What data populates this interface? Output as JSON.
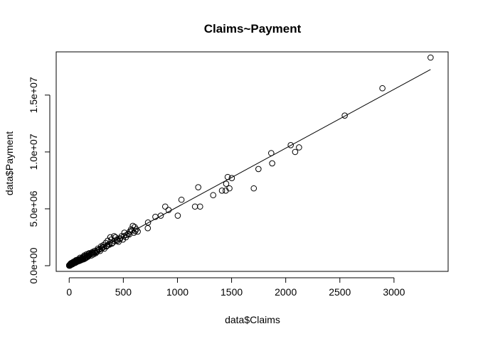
{
  "chart_data": {
    "type": "scatter",
    "title": "Claims~Payment",
    "xlabel": "data$Claims",
    "ylabel": "data$Payment",
    "xlim": [
      -120,
      3500
    ],
    "ylim": [
      -500000,
      18800000
    ],
    "xticks": [
      0,
      500,
      1000,
      1500,
      2000,
      2500,
      3000
    ],
    "xtick_labels": [
      "0",
      "500",
      "1000",
      "1500",
      "2000",
      "2500",
      "3000"
    ],
    "yticks": [
      0,
      5000000,
      10000000,
      15000000
    ],
    "ytick_labels": [
      "0.0e+00",
      "5.0e+06",
      "1.0e+07",
      "1.5e+07"
    ],
    "grid": false,
    "legend": "none",
    "point_style": "open circle",
    "fit_line": {
      "x": [
        0,
        3338
      ],
      "y": [
        0,
        17250000
      ]
    },
    "points": [
      [
        3338,
        18300000
      ],
      [
        2893,
        15600000
      ],
      [
        2545,
        13200000
      ],
      [
        2123,
        10400000
      ],
      [
        2087,
        10000000
      ],
      [
        2046,
        10600000
      ],
      [
        1875,
        9000000
      ],
      [
        1866,
        9900000
      ],
      [
        1748,
        8500000
      ],
      [
        1705,
        6800000
      ],
      [
        1502,
        7700000
      ],
      [
        1464,
        7800000
      ],
      [
        1480,
        6800000
      ],
      [
        1450,
        7200000
      ],
      [
        1446,
        6600000
      ],
      [
        1411,
        6600000
      ],
      [
        1330,
        6200000
      ],
      [
        1209,
        5200000
      ],
      [
        1192,
        6900000
      ],
      [
        1162,
        5200000
      ],
      [
        1037,
        5800000
      ],
      [
        1003,
        4400000
      ],
      [
        918,
        4900000
      ],
      [
        887,
        5200000
      ],
      [
        846,
        4400000
      ],
      [
        796,
        4300000
      ],
      [
        728,
        3800000
      ],
      [
        726,
        3300000
      ],
      [
        633,
        3000000
      ],
      [
        620,
        3200000
      ],
      [
        605,
        3400000
      ],
      [
        598,
        2900000
      ],
      [
        588,
        3500000
      ],
      [
        572,
        3200000
      ],
      [
        560,
        3000000
      ],
      [
        545,
        2800000
      ],
      [
        524,
        2500000
      ],
      [
        510,
        2900000
      ],
      [
        496,
        2300000
      ],
      [
        484,
        2600000
      ],
      [
        468,
        2400000
      ],
      [
        456,
        2100000
      ],
      [
        440,
        2300000
      ],
      [
        428,
        2500000
      ],
      [
        415,
        2600000
      ],
      [
        400,
        2000000
      ],
      [
        390,
        2300000
      ],
      [
        380,
        2500000
      ],
      [
        368,
        1900000
      ],
      [
        356,
        2200000
      ],
      [
        345,
        1700000
      ],
      [
        338,
        2000000
      ],
      [
        325,
        1500000
      ],
      [
        315,
        1800000
      ],
      [
        305,
        1600000
      ],
      [
        295,
        1700000
      ],
      [
        285,
        1300000
      ],
      [
        275,
        1400000
      ],
      [
        265,
        1500000
      ],
      [
        255,
        1200000
      ],
      [
        245,
        1100000
      ],
      [
        235,
        1300000
      ],
      [
        225,
        1000000
      ],
      [
        215,
        1200000
      ],
      [
        205,
        900000
      ],
      [
        195,
        1000000
      ],
      [
        185,
        1100000
      ],
      [
        175,
        800000
      ],
      [
        165,
        900000
      ],
      [
        158,
        700000
      ],
      [
        150,
        850000
      ],
      [
        142,
        600000
      ],
      [
        135,
        750000
      ],
      [
        128,
        550000
      ],
      [
        120,
        650000
      ],
      [
        112,
        500000
      ],
      [
        105,
        600000
      ],
      [
        98,
        450000
      ],
      [
        92,
        520000
      ],
      [
        85,
        400000
      ],
      [
        78,
        460000
      ],
      [
        72,
        350000
      ],
      [
        66,
        400000
      ],
      [
        60,
        300000
      ],
      [
        55,
        360000
      ],
      [
        50,
        250000
      ],
      [
        45,
        300000
      ],
      [
        40,
        200000
      ],
      [
        36,
        250000
      ],
      [
        32,
        170000
      ],
      [
        28,
        200000
      ],
      [
        24,
        130000
      ],
      [
        20,
        160000
      ],
      [
        17,
        100000
      ],
      [
        14,
        120000
      ],
      [
        11,
        70000
      ],
      [
        8,
        90000
      ],
      [
        6,
        50000
      ],
      [
        4,
        30000
      ],
      [
        3,
        60000
      ],
      [
        2,
        20000
      ],
      [
        1,
        10000
      ],
      [
        0,
        0
      ],
      [
        0,
        40000
      ],
      [
        5,
        0
      ],
      [
        10,
        30000
      ],
      [
        15,
        60000
      ],
      [
        22,
        100000
      ],
      [
        30,
        130000
      ],
      [
        38,
        180000
      ],
      [
        46,
        220000
      ],
      [
        58,
        260000
      ],
      [
        68,
        320000
      ],
      [
        80,
        380000
      ],
      [
        95,
        420000
      ],
      [
        108,
        480000
      ],
      [
        118,
        560000
      ],
      [
        130,
        620000
      ],
      [
        145,
        680000
      ],
      [
        160,
        760000
      ],
      [
        172,
        860000
      ],
      [
        188,
        940000
      ],
      [
        200,
        1050000
      ],
      [
        220,
        1120000
      ],
      [
        240,
        1200000
      ],
      [
        260,
        1350000
      ],
      [
        280,
        1450000
      ],
      [
        300,
        1500000
      ],
      [
        320,
        1650000
      ],
      [
        350,
        1750000
      ],
      [
        372,
        1850000
      ],
      [
        395,
        1950000
      ],
      [
        420,
        2150000
      ],
      [
        445,
        2200000
      ],
      [
        470,
        2350000
      ],
      [
        505,
        2600000
      ],
      [
        530,
        2700000
      ],
      [
        555,
        2750000
      ],
      [
        580,
        3100000
      ],
      [
        610,
        3050000
      ],
      [
        140,
        900000
      ],
      [
        160,
        1000000
      ],
      [
        180,
        1050000
      ],
      [
        210,
        1100000
      ],
      [
        230,
        1150000
      ],
      [
        62,
        480000
      ],
      [
        74,
        520000
      ],
      [
        88,
        560000
      ],
      [
        100,
        700000
      ],
      [
        125,
        760000
      ],
      [
        40,
        350000
      ],
      [
        52,
        380000
      ],
      [
        26,
        260000
      ],
      [
        18,
        220000
      ],
      [
        12,
        180000
      ]
    ]
  }
}
